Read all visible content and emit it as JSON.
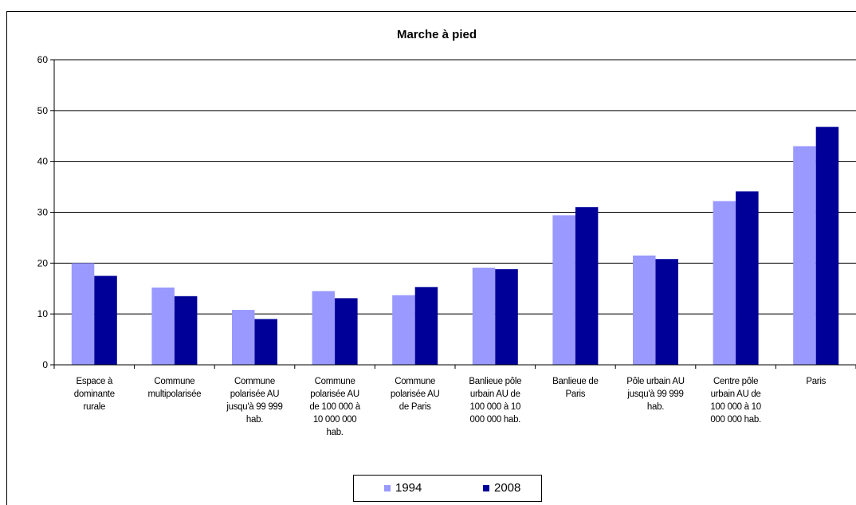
{
  "chart_data": {
    "type": "bar",
    "title": "Marche à pied",
    "categories": [
      [
        "Espace à",
        "dominante",
        "rurale"
      ],
      [
        "Commune",
        "multipolarisée"
      ],
      [
        "Commune",
        "polarisée AU",
        "jusqu'à 99 999",
        "hab."
      ],
      [
        "Commune",
        "polarisée  AU",
        "de 100 000 à",
        "10 000 000",
        "hab."
      ],
      [
        "Commune",
        "polarisée AU",
        "de Paris"
      ],
      [
        "Banlieue pôle",
        "urbain AU de",
        "100 000 à 10",
        "000 000 hab."
      ],
      [
        "Banlieue de",
        "Paris"
      ],
      [
        "Pôle urbain AU",
        "jusqu'à 99 999",
        "hab."
      ],
      [
        "Centre pôle",
        "urbain AU de",
        "100 000 à 10",
        "000 000 hab."
      ],
      [
        "Paris"
      ]
    ],
    "series": [
      {
        "name": "1994",
        "color": "#9999ff",
        "values": [
          20,
          15.2,
          10.8,
          14.5,
          13.7,
          19.1,
          29.4,
          21.5,
          32.2,
          43
        ]
      },
      {
        "name": "2008",
        "color": "#000099",
        "values": [
          17.5,
          13.5,
          9,
          13.1,
          15.3,
          18.8,
          31,
          20.8,
          34.1,
          46.8
        ]
      }
    ],
    "ylim": [
      0,
      60
    ],
    "yticks": [
      0,
      10,
      20,
      30,
      40,
      50,
      60
    ],
    "grid": true,
    "legend": "bottom"
  }
}
